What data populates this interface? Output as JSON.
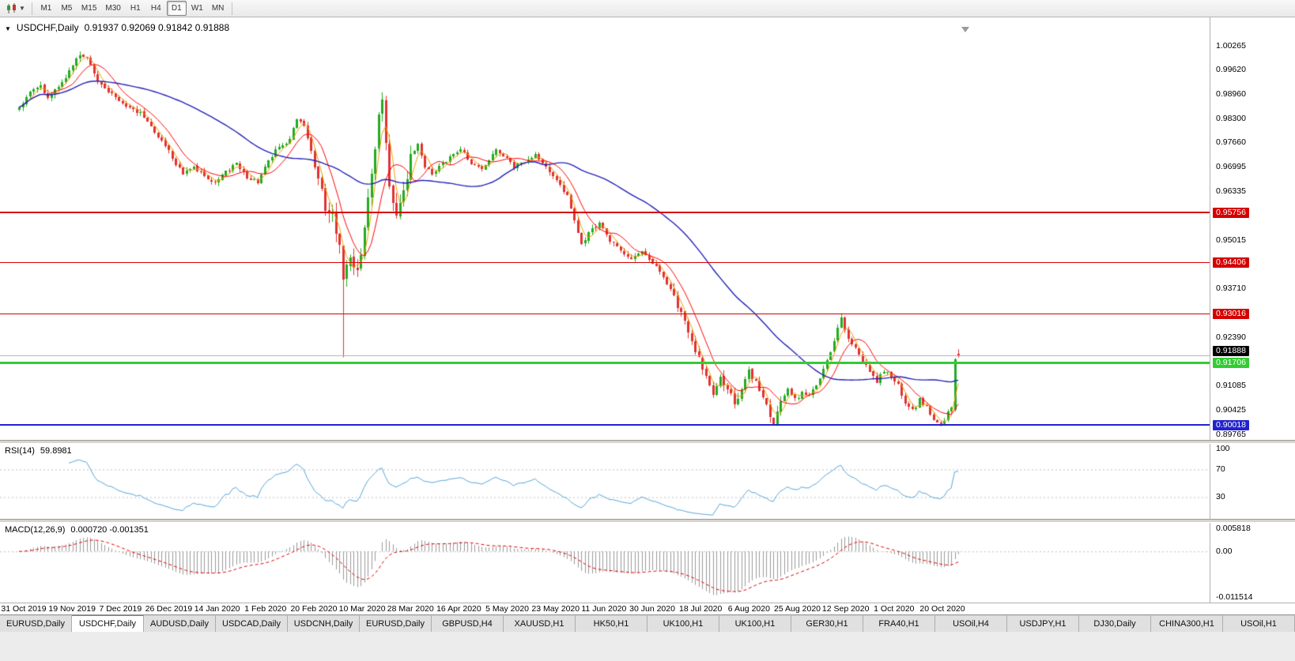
{
  "toolbar": {
    "timeframes": [
      {
        "label": "M1",
        "active": false
      },
      {
        "label": "M5",
        "active": false
      },
      {
        "label": "M15",
        "active": false
      },
      {
        "label": "M30",
        "active": false
      },
      {
        "label": "H1",
        "active": false
      },
      {
        "label": "H4",
        "active": false
      },
      {
        "label": "D1",
        "active": true
      },
      {
        "label": "W1",
        "active": false
      },
      {
        "label": "MN",
        "active": false
      }
    ]
  },
  "chart": {
    "symbol": "USDCHF,Daily",
    "ohlc_text": "0.91937 0.92069 0.91842 0.91888"
  },
  "price_axis": {
    "ticks": [
      1.00265,
      0.9962,
      0.9896,
      0.983,
      0.9766,
      0.96995,
      0.96335,
      0.95675,
      0.95015,
      0.94355,
      0.9371,
      0.9305,
      0.9239,
      0.9173,
      0.91085,
      0.90425,
      0.89765
    ]
  },
  "levels": [
    {
      "price": 0.95756,
      "label": "0.95756",
      "color": "#d40000",
      "width": 2,
      "name": "resistance-line-0-95756"
    },
    {
      "price": 0.94406,
      "label": "0.94406",
      "color": "#d40000",
      "width": 1,
      "name": "resistance-line-0-94406"
    },
    {
      "price": 0.93016,
      "label": "0.93016",
      "color": "#d40000",
      "width": 1,
      "name": "resistance-line-0-93016"
    },
    {
      "price": 0.91706,
      "label": "0.91706",
      "color": "#33cc33",
      "width": 3,
      "name": "support-line-0-91706"
    },
    {
      "price": 0.90018,
      "label": "0.90018",
      "color": "#2222cc",
      "width": 2,
      "name": "support-line-0-90018"
    }
  ],
  "current_price": {
    "value": 0.91888,
    "label": "0.91888",
    "line_color": "#b8b8b8",
    "label_bg": "#000000"
  },
  "rsi": {
    "title": "RSI(14)",
    "value": "59.8981",
    "ticks": [
      100,
      70,
      30
    ],
    "level_lines": [
      70,
      30
    ],
    "line_color": "#55a5d8"
  },
  "macd": {
    "title": "MACD(12,26,9)",
    "values": "0.000720 -0.001351",
    "ticks": [
      0.005818,
      0,
      -0.011514
    ],
    "tick_labels": [
      "0.005818",
      "0.00",
      "-0.011514"
    ],
    "hist_color": "#9a9a9a",
    "signal_color": "#e00000"
  },
  "date_axis": {
    "labels": [
      "31 Oct 2019",
      "19 Nov 2019",
      "7 Dec 2019",
      "26 Dec 2019",
      "14 Jan 2020",
      "1 Feb 2020",
      "20 Feb 2020",
      "10 Mar 2020",
      "28 Mar 2020",
      "16 Apr 2020",
      "5 May 2020",
      "23 May 2020",
      "11 Jun 2020",
      "30 Jun 2020",
      "18 Jul 2020",
      "6 Aug 2020",
      "25 Aug 2020",
      "12 Sep 2020",
      "1 Oct 2020",
      "20 Oct 2020"
    ],
    "bar_indices": [
      0,
      13,
      26,
      39,
      52,
      65,
      78,
      91,
      104,
      117,
      130,
      143,
      156,
      169,
      182,
      195,
      208,
      221,
      234,
      247
    ]
  },
  "tabs": [
    {
      "label": "EURUSD,Daily",
      "active": false
    },
    {
      "label": "USDCHF,Daily",
      "active": true
    },
    {
      "label": "AUDUSD,Daily",
      "active": false
    },
    {
      "label": "USDCAD,Daily",
      "active": false
    },
    {
      "label": "USDCNH,Daily",
      "active": false
    },
    {
      "label": "EURUSD,Daily",
      "active": false
    },
    {
      "label": "GBPUSD,H4",
      "active": false
    },
    {
      "label": "XAUUSD,H1",
      "active": false
    },
    {
      "label": "HK50,H1",
      "active": false
    },
    {
      "label": "UK100,H1",
      "active": false
    },
    {
      "label": "UK100,H1",
      "active": false
    },
    {
      "label": "GER30,H1",
      "active": false
    },
    {
      "label": "FRA40,H1",
      "active": false
    },
    {
      "label": "USOil,H4",
      "active": false
    },
    {
      "label": "USDJPY,H1",
      "active": false
    },
    {
      "label": "DJ30,Daily",
      "active": false
    },
    {
      "label": "CHINA300,H1",
      "active": false
    },
    {
      "label": "USOil,H1",
      "active": false
    }
  ],
  "chart_data": {
    "type": "candlestick",
    "symbol": "USDCHF",
    "timeframe": "D1",
    "bars": 265,
    "y_axis": {
      "top": 1.01035,
      "bottom": 0.8962
    },
    "x_axis": {
      "first_date": "31 Oct 2019",
      "last_date": "10 Nov 2020"
    },
    "up_color": "#22ab22",
    "down_color": "#e03232",
    "close_anchors": [
      [
        0,
        0.986
      ],
      [
        3,
        0.99
      ],
      [
        6,
        0.992
      ],
      [
        8,
        0.9885
      ],
      [
        11,
        0.9915
      ],
      [
        14,
        0.996
      ],
      [
        17,
        1.0005
      ],
      [
        19,
        0.9995
      ],
      [
        22,
        0.9935
      ],
      [
        25,
        0.9905
      ],
      [
        28,
        0.988
      ],
      [
        31,
        0.9855
      ],
      [
        34,
        0.9845
      ],
      [
        37,
        0.981
      ],
      [
        40,
        0.977
      ],
      [
        43,
        0.9725
      ],
      [
        46,
        0.968
      ],
      [
        49,
        0.97
      ],
      [
        52,
        0.9675
      ],
      [
        55,
        0.966
      ],
      [
        58,
        0.9685
      ],
      [
        61,
        0.971
      ],
      [
        64,
        0.967
      ],
      [
        67,
        0.966
      ],
      [
        70,
        0.972
      ],
      [
        73,
        0.9755
      ],
      [
        76,
        0.9775
      ],
      [
        78,
        0.983
      ],
      [
        80,
        0.981
      ],
      [
        82,
        0.974
      ],
      [
        84,
        0.966
      ],
      [
        86,
        0.959
      ],
      [
        88,
        0.956
      ],
      [
        90,
        0.948
      ],
      [
        91,
        0.94
      ],
      [
        93,
        0.944
      ],
      [
        95,
        0.942
      ],
      [
        97,
        0.953
      ],
      [
        99,
        0.968
      ],
      [
        101,
        0.984
      ],
      [
        102,
        0.987
      ],
      [
        103,
        0.975
      ],
      [
        104,
        0.964
      ],
      [
        106,
        0.957
      ],
      [
        108,
        0.963
      ],
      [
        110,
        0.972
      ],
      [
        112,
        0.976
      ],
      [
        114,
        0.97
      ],
      [
        116,
        0.968
      ],
      [
        118,
        0.97
      ],
      [
        121,
        0.9725
      ],
      [
        124,
        0.975
      ],
      [
        127,
        0.971
      ],
      [
        130,
        0.969
      ],
      [
        132,
        0.972
      ],
      [
        134,
        0.975
      ],
      [
        136,
        0.973
      ],
      [
        139,
        0.97
      ],
      [
        142,
        0.9715
      ],
      [
        145,
        0.973
      ],
      [
        148,
        0.97
      ],
      [
        151,
        0.966
      ],
      [
        154,
        0.962
      ],
      [
        156,
        0.956
      ],
      [
        158,
        0.949
      ],
      [
        160,
        0.952
      ],
      [
        163,
        0.955
      ],
      [
        166,
        0.95
      ],
      [
        169,
        0.947
      ],
      [
        172,
        0.945
      ],
      [
        175,
        0.947
      ],
      [
        178,
        0.944
      ],
      [
        181,
        0.94
      ],
      [
        184,
        0.935
      ],
      [
        187,
        0.928
      ],
      [
        190,
        0.92
      ],
      [
        193,
        0.913
      ],
      [
        195,
        0.908
      ],
      [
        197,
        0.913
      ],
      [
        199,
        0.91
      ],
      [
        201,
        0.906
      ],
      [
        203,
        0.91
      ],
      [
        205,
        0.915
      ],
      [
        207,
        0.912
      ],
      [
        209,
        0.907
      ],
      [
        211,
        0.903
      ],
      [
        212,
        0.901
      ],
      [
        214,
        0.906
      ],
      [
        216,
        0.91
      ],
      [
        218,
        0.907
      ],
      [
        220,
        0.909
      ],
      [
        222,
        0.908
      ],
      [
        224,
        0.911
      ],
      [
        226,
        0.915
      ],
      [
        228,
        0.92
      ],
      [
        230,
        0.926
      ],
      [
        231,
        0.929
      ],
      [
        233,
        0.924
      ],
      [
        235,
        0.921
      ],
      [
        237,
        0.917
      ],
      [
        239,
        0.915
      ],
      [
        241,
        0.912
      ],
      [
        243,
        0.915
      ],
      [
        245,
        0.913
      ],
      [
        247,
        0.911
      ],
      [
        249,
        0.906
      ],
      [
        251,
        0.904
      ],
      [
        253,
        0.907
      ],
      [
        255,
        0.905
      ],
      [
        257,
        0.902
      ],
      [
        259,
        0.9
      ],
      [
        260,
        0.901
      ],
      [
        261,
        0.904
      ],
      [
        262,
        0.905
      ],
      [
        263,
        0.918
      ],
      [
        264,
        0.91888
      ]
    ],
    "volatility_zones": [
      {
        "from": 84,
        "to": 110,
        "amp": 0.0032
      },
      {
        "from": 184,
        "to": 214,
        "amp": 0.0018
      }
    ],
    "base_amp": 0.0011,
    "overrides": [
      {
        "bar": 91,
        "low": 0.9185
      },
      {
        "bar": 102,
        "high": 0.9901
      },
      {
        "bar": 231,
        "high": 0.9304
      },
      {
        "bar": 259,
        "low": 0.8998
      },
      {
        "bar": 263,
        "open": 0.9043,
        "high": 0.9183,
        "low": 0.9038,
        "close": 0.918
      },
      {
        "bar": 264,
        "open": 0.91937,
        "high": 0.92069,
        "low": 0.91842,
        "close": 0.91888
      }
    ],
    "moving_averages": [
      {
        "period": 4,
        "color": "#f0a000",
        "width": 1
      },
      {
        "period": 9,
        "color": "#ff0000",
        "width": 1
      },
      {
        "period": 45,
        "color": "#2121b8",
        "width": 1.4
      }
    ],
    "indicators": {
      "rsi_period": 14,
      "macd": [
        12,
        26,
        9
      ]
    }
  }
}
